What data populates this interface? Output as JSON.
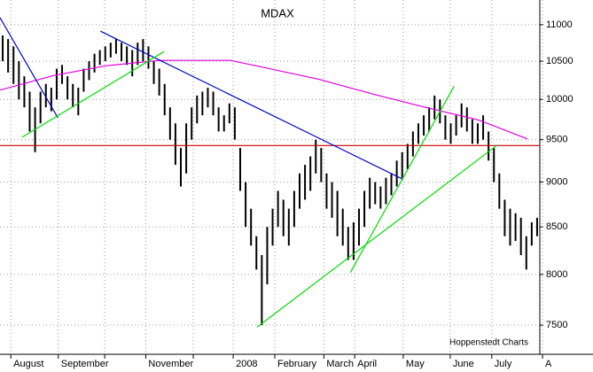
{
  "chart_data": {
    "type": "highlow",
    "title": "MDAX",
    "source": "Hoppenstedt Charts",
    "log_scale": true,
    "grid": true,
    "bar_color": "#000000",
    "xlim": [
      0,
      100
    ],
    "ylim": [
      7226,
      11352
    ],
    "yticks": [
      7500,
      8000,
      8500,
      9000,
      9500,
      10000,
      10500,
      11000
    ],
    "xticks": [
      {
        "value": 2,
        "label": "August"
      },
      {
        "value": 10.8,
        "label": "September"
      },
      {
        "value": 19.4,
        "label": null
      },
      {
        "value": 27,
        "label": "November"
      },
      {
        "value": 35.8,
        "label": null
      },
      {
        "value": 43.2,
        "label": "2008"
      },
      {
        "value": 50.9,
        "label": "February"
      },
      {
        "value": 60,
        "label": "March"
      },
      {
        "value": 65.7,
        "label": "April"
      },
      {
        "value": 74.7,
        "label": "May"
      },
      {
        "value": 83.4,
        "label": "June"
      },
      {
        "value": 91.1,
        "label": "July"
      },
      {
        "value": 100.5,
        "label": "A"
      }
    ],
    "high": [
      10850,
      10800,
      10700,
      10500,
      10300,
      10100,
      9900,
      10100,
      10200,
      10150,
      10400,
      10450,
      10300,
      10200,
      10150,
      10400,
      10500,
      10600,
      10650,
      10700,
      10750,
      10800,
      10750,
      10700,
      10650,
      10750,
      10800,
      10700,
      10500,
      10400,
      10200,
      9900,
      9700,
      9400,
      9700,
      9900,
      10050,
      10100,
      10150,
      10100,
      9900,
      9800,
      9950,
      9900,
      9400,
      9000,
      8700,
      8400,
      8200,
      8500,
      8700,
      8900,
      8800,
      8700,
      8900,
      9100,
      9200,
      9300,
      9500,
      9400,
      9100,
      9000,
      8900,
      8700,
      8500,
      8550,
      8700,
      8900,
      9050,
      9000,
      8950,
      9050,
      9100,
      9250,
      9350,
      9450,
      9600,
      9700,
      9800,
      9900,
      10050,
      10000,
      9800,
      9700,
      9800,
      9950,
      9900,
      9750,
      9700,
      9800,
      9600,
      9400,
      9100,
      8800,
      8700,
      8650,
      8600,
      8400,
      8550,
      8600
    ],
    "low": [
      10500,
      10350,
      10200,
      10000,
      9900,
      9600,
      9350,
      9700,
      9900,
      9850,
      10000,
      10200,
      10000,
      9900,
      9800,
      10100,
      10250,
      10350,
      10450,
      10500,
      10550,
      10600,
      10500,
      10450,
      10300,
      10450,
      10500,
      10400,
      10200,
      10050,
      9800,
      9500,
      9200,
      8950,
      9100,
      9500,
      9700,
      9800,
      9900,
      9800,
      9600,
      9600,
      9700,
      9500,
      8900,
      8500,
      8300,
      8050,
      7500,
      7900,
      8300,
      8500,
      8400,
      8300,
      8500,
      8700,
      8800,
      8900,
      9100,
      9000,
      8700,
      8600,
      8400,
      8300,
      8150,
      8150,
      8300,
      8500,
      8700,
      8750,
      8700,
      8750,
      8850,
      8950,
      9050,
      9150,
      9300,
      9450,
      9550,
      9600,
      9750,
      9700,
      9500,
      9450,
      9550,
      9650,
      9600,
      9450,
      9450,
      9500,
      9250,
      9000,
      8700,
      8400,
      8300,
      8350,
      8200,
      8050,
      8300,
      8400
    ],
    "lines": [
      {
        "color": "#e000e0",
        "x": [
          0,
          9.9,
          19.7,
          29.6,
          42.7,
          49.3,
          59.1,
          69,
          78.8,
          88.7,
          97.7
        ],
        "y": [
          10120,
          10310,
          10440,
          10510,
          10510,
          10410,
          10260,
          10070,
          9900,
          9740,
          9510
        ]
      },
      {
        "color": "#cc0000",
        "x": [
          0,
          100
        ],
        "y": [
          9430,
          9430
        ]
      },
      {
        "color": "#0000cc",
        "x": [
          0,
          10.7
        ],
        "y": [
          11100,
          9770
        ]
      },
      {
        "color": "#0000cc",
        "x": [
          18.6,
          74.7
        ],
        "y": [
          10910,
          9030
        ]
      },
      {
        "color": "#00dd00",
        "x": [
          4.1,
          30.4
        ],
        "y": [
          9530,
          10630
        ]
      },
      {
        "color": "#00dd00",
        "x": [
          47.6,
          92
        ],
        "y": [
          7480,
          9430
        ]
      },
      {
        "color": "#00dd00",
        "x": [
          64.9,
          84.1
        ],
        "y": [
          8020,
          10170
        ]
      }
    ]
  }
}
